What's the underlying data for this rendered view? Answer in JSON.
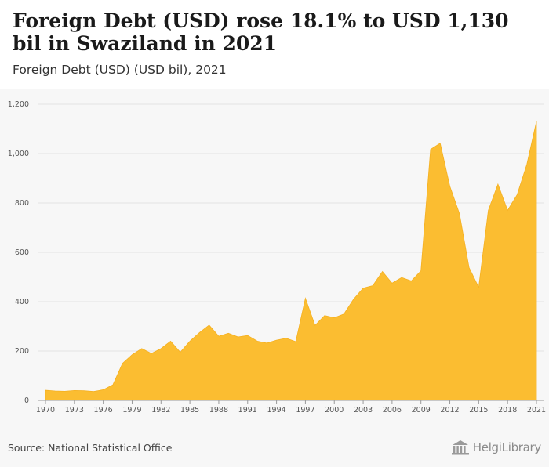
{
  "header": {
    "title": "Foreign Debt (USD) rose 18.1% to USD 1,130 bil in Swaziland in 2021",
    "subtitle": "Foreign Debt (USD) (USD bil), 2021"
  },
  "footer": {
    "source": "Source: National Statistical Office",
    "logo": "HelgiLibrary"
  },
  "colors": {
    "area_fill": "#fbbd31",
    "area_stroke": "#f5b020",
    "grid": "#e3e3e3",
    "axis": "#999999"
  },
  "chart_data": {
    "type": "area",
    "title": "Foreign Debt (USD) (USD bil), 2021",
    "xlabel": "",
    "ylabel": "",
    "ylim": [
      0,
      1200
    ],
    "xlim": [
      1970,
      2021
    ],
    "grid": true,
    "yticks": [
      0,
      200,
      400,
      600,
      800,
      1000,
      1200
    ],
    "ytick_labels": [
      "0",
      "200",
      "400",
      "600",
      "800",
      "1,000",
      "1,200"
    ],
    "xticks": [
      1970,
      1973,
      1976,
      1979,
      1982,
      1985,
      1988,
      1991,
      1994,
      1997,
      2000,
      2003,
      2006,
      2009,
      2012,
      2015,
      2018,
      2021
    ],
    "xtick_labels": [
      "1970",
      "1973",
      "1976",
      "1979",
      "1982",
      "1985",
      "1988",
      "1991",
      "1994",
      "1997",
      "2000",
      "2003",
      "2006",
      "2009",
      "2012",
      "2015",
      "2018",
      "2021"
    ],
    "x": [
      1970,
      1971,
      1972,
      1973,
      1974,
      1975,
      1976,
      1977,
      1978,
      1979,
      1980,
      1981,
      1982,
      1983,
      1984,
      1985,
      1986,
      1987,
      1988,
      1989,
      1990,
      1991,
      1992,
      1993,
      1994,
      1995,
      1996,
      1997,
      1998,
      1999,
      2000,
      2001,
      2002,
      2003,
      2004,
      2005,
      2006,
      2007,
      2008,
      2009,
      2010,
      2011,
      2012,
      2013,
      2014,
      2015,
      2016,
      2017,
      2018,
      2019,
      2020,
      2021
    ],
    "values": [
      41,
      38,
      37,
      40,
      39,
      36,
      43,
      63,
      150,
      185,
      210,
      190,
      210,
      240,
      195,
      240,
      275,
      305,
      260,
      272,
      257,
      263,
      240,
      232,
      244,
      252,
      238,
      414,
      304,
      344,
      335,
      350,
      410,
      455,
      465,
      522,
      475,
      498,
      484,
      525,
      1017,
      1042,
      868,
      757,
      538,
      458,
      770,
      876,
      770,
      834,
      956,
      1130
    ]
  }
}
